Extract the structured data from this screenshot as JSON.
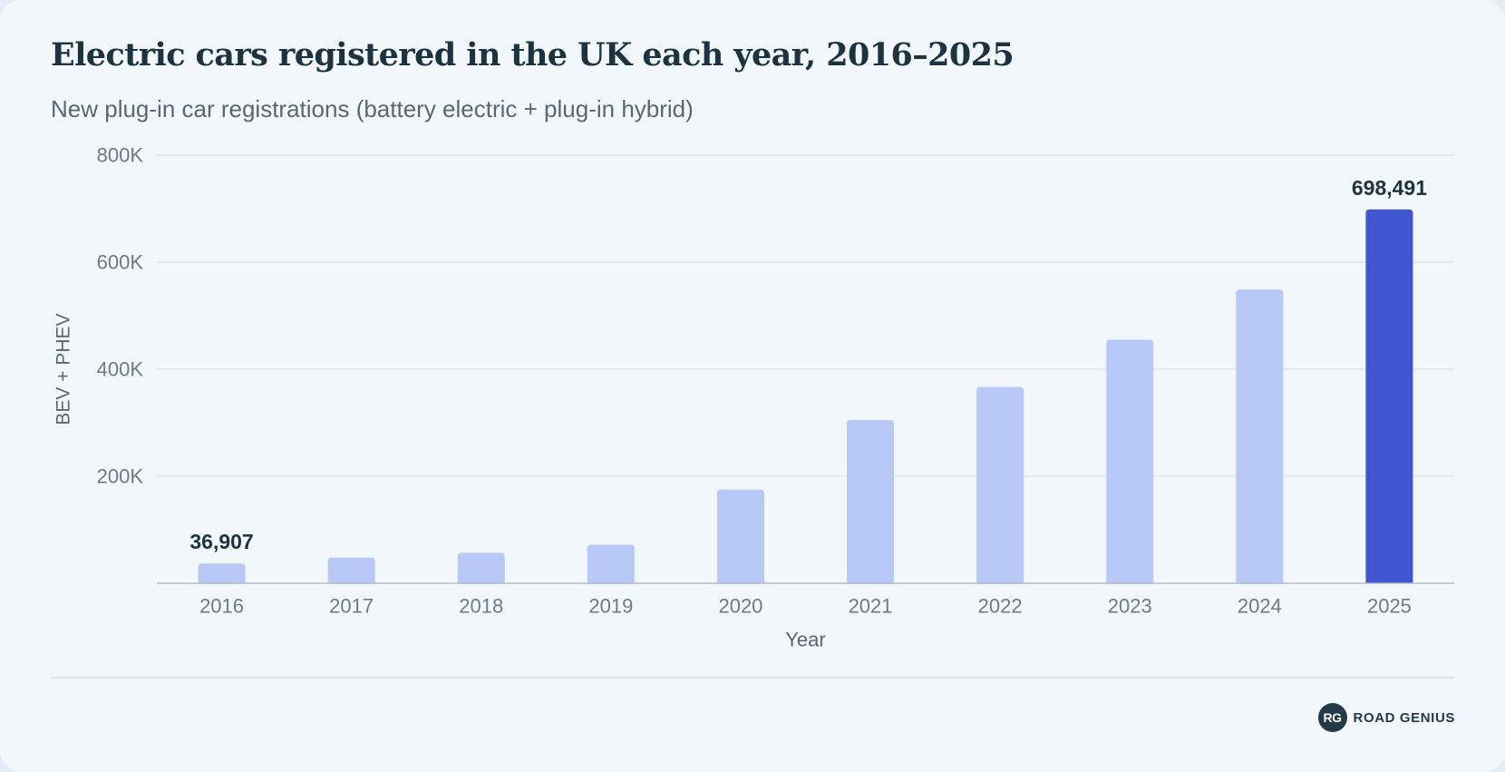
{
  "chart_data": {
    "type": "bar",
    "title": "Electric cars registered in the UK each year, 2016–2025",
    "subtitle": "New plug-in car registrations (battery electric + plug-in hybrid)",
    "xlabel": "Year",
    "ylabel": "BEV + PHEV",
    "categories": [
      "2016",
      "2017",
      "2018",
      "2019",
      "2020",
      "2021",
      "2022",
      "2023",
      "2024",
      "2025"
    ],
    "values": [
      36907,
      48000,
      57000,
      72000,
      175000,
      305000,
      367000,
      455000,
      549000,
      698491
    ],
    "ylim": [
      0,
      800000
    ],
    "yticks": [
      {
        "value": 200000,
        "label": "200K"
      },
      {
        "value": 400000,
        "label": "400K"
      },
      {
        "value": 600000,
        "label": "600K"
      },
      {
        "value": 800000,
        "label": "800K"
      }
    ],
    "data_labels": [
      {
        "category": "2016",
        "text": "36,907"
      },
      {
        "category": "2025",
        "text": "698,491"
      }
    ],
    "highlight_category": "2025",
    "grid": true,
    "colors": {
      "bar": "#b8c9f7",
      "highlight_bar": "#3f55d1",
      "grid": "#dde3ea",
      "axis": "#b4bcc6",
      "tick_text": "#6f7a84",
      "label_text": "#1f3440"
    }
  },
  "brand": {
    "mark": "RG",
    "name": "ROAD GENIUS"
  }
}
